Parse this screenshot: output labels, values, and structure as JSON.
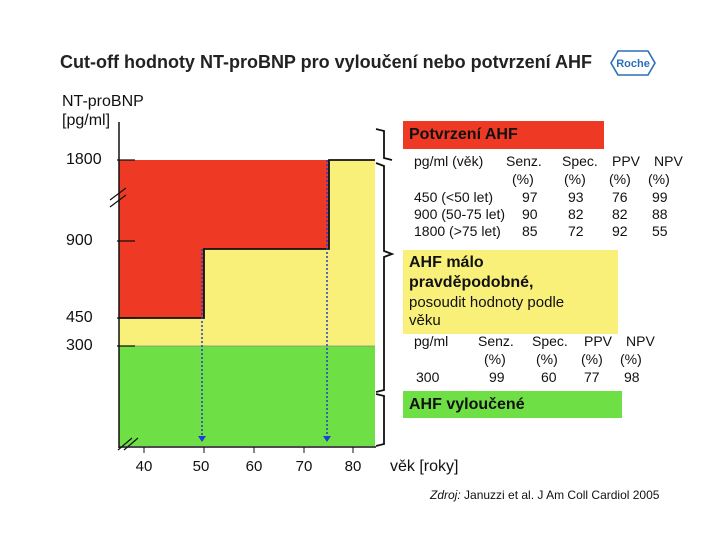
{
  "title": "Cut-off hodnoty NT-proBNP pro vyloučení nebo potvrzení AHF",
  "logo_text": "Roche",
  "y_axis": {
    "label_line1": "NT-proBNP",
    "label_line2": "[pg/ml]",
    "ticks": [
      "1800",
      "900",
      "450",
      "300"
    ]
  },
  "x_axis": {
    "label": "věk [roky]",
    "ticks": [
      "40",
      "50",
      "60",
      "70",
      "80"
    ]
  },
  "zones": {
    "confirm": {
      "label": "Potvrzení AHF",
      "color": "#ee3a24"
    },
    "uncertain": {
      "line1": "AHF málo",
      "line2": "pravděpodobné,",
      "line3": "posoudit hodnoty podle",
      "line4": "věku",
      "color": "#f9f07a"
    },
    "exclude": {
      "label": "AHF vyloučené",
      "color": "#6ee045"
    }
  },
  "confirm_table": {
    "headers": [
      "pg/ml (věk)",
      "Senz.",
      "Spec.",
      "PPV",
      "NPV"
    ],
    "units": [
      "(%)",
      "(%)",
      "(%)",
      "(%)"
    ],
    "rows": [
      [
        "450 (<50 let)",
        "97",
        "93",
        "76",
        "99"
      ],
      [
        "900 (50-75 let)",
        "90",
        "82",
        "82",
        "88"
      ],
      [
        "1800 (>75 let)",
        "85",
        "72",
        "92",
        "55"
      ]
    ]
  },
  "exclude_table": {
    "headers": [
      "pg/ml",
      "Senz.",
      "Spec.",
      "PPV",
      "NPV"
    ],
    "units": [
      "(%)",
      "(%)",
      "(%)",
      "(%)"
    ],
    "row": [
      "300",
      "99",
      "60",
      "77",
      "98"
    ]
  },
  "source": {
    "prefix": "Zdroj:",
    "text": " Januzzi et al. J Am Coll Cardiol 2005"
  }
}
